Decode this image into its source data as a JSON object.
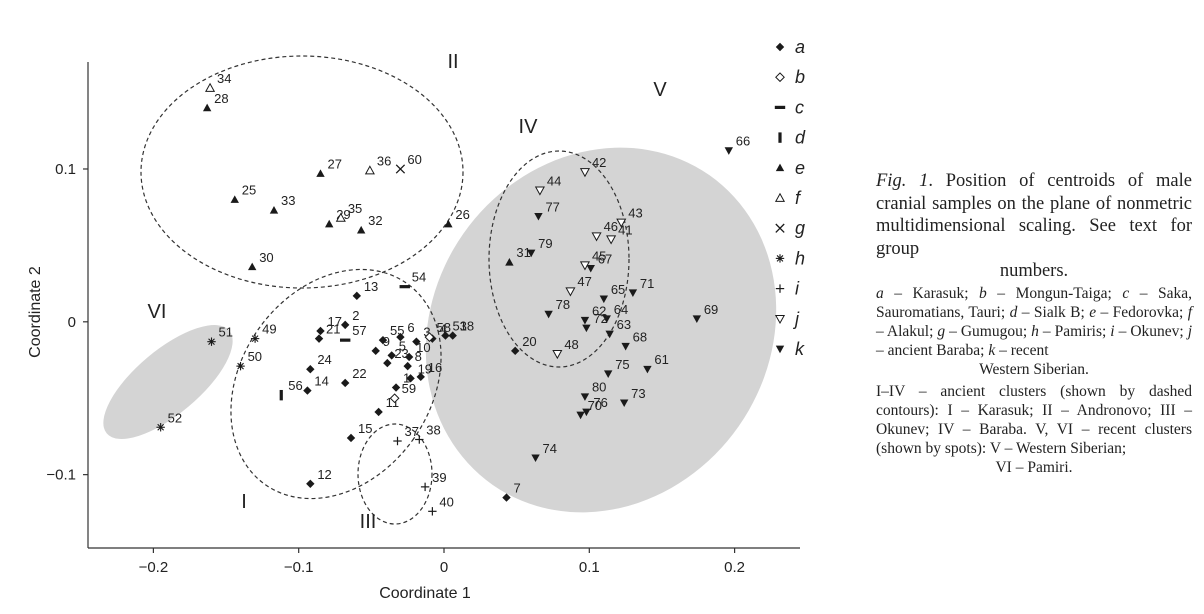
{
  "chart_data": {
    "type": "scatter",
    "xlabel": "Coordinate 1",
    "ylabel": "Coordinate 2",
    "xlim": [
      -0.245,
      0.245
    ],
    "ylim": [
      -0.148,
      0.17
    ],
    "x_ticks": [
      -0.2,
      -0.1,
      0,
      0.1,
      0.2
    ],
    "x_tick_labels": [
      "−0.2",
      "−0.1",
      "0",
      "0.1",
      "0.2"
    ],
    "y_ticks": [
      -0.1,
      0,
      0.1
    ],
    "y_tick_labels": [
      "−0.1",
      "0",
      "0.1"
    ],
    "grid": false,
    "legend_position": "right",
    "series": [
      {
        "name": "a",
        "marker": "diamond",
        "points": [
          {
            "label": "1",
            "x": -0.033,
            "y": -0.043
          },
          {
            "label": "2",
            "x": -0.068,
            "y": -0.002
          },
          {
            "label": "3",
            "x": -0.019,
            "y": -0.013
          },
          {
            "label": "4",
            "x": -0.008,
            "y": -0.011
          },
          {
            "label": "5",
            "x": -0.036,
            "y": -0.022
          },
          {
            "label": "6",
            "x": -0.03,
            "y": -0.01
          },
          {
            "label": "7",
            "x": 0.043,
            "y": -0.115
          },
          {
            "label": "8",
            "x": -0.025,
            "y": -0.029
          },
          {
            "label": "9",
            "x": -0.047,
            "y": -0.019
          },
          {
            "label": "10",
            "x": -0.024,
            "y": -0.023
          },
          {
            "label": "11",
            "x": -0.045,
            "y": -0.059
          },
          {
            "label": "12",
            "x": -0.092,
            "y": -0.106
          },
          {
            "label": "13",
            "x": -0.06,
            "y": 0.017
          },
          {
            "label": "14",
            "x": -0.094,
            "y": -0.045
          },
          {
            "label": "15",
            "x": -0.064,
            "y": -0.076
          },
          {
            "label": "16",
            "x": -0.016,
            "y": -0.036
          },
          {
            "label": "17",
            "x": -0.085,
            "y": -0.006
          },
          {
            "label": "18",
            "x": 0.006,
            "y": -0.009
          },
          {
            "label": "19",
            "x": -0.023,
            "y": -0.037
          },
          {
            "label": "20",
            "x": 0.049,
            "y": -0.019
          },
          {
            "label": "21",
            "x": -0.086,
            "y": -0.011
          },
          {
            "label": "22",
            "x": -0.068,
            "y": -0.04
          },
          {
            "label": "23",
            "x": -0.039,
            "y": -0.027
          },
          {
            "label": "24",
            "x": -0.092,
            "y": -0.031
          },
          {
            "label": "53",
            "x": 0.001,
            "y": -0.009
          },
          {
            "label": "55",
            "x": -0.042,
            "y": -0.012
          }
        ]
      },
      {
        "name": "b",
        "marker": "diamond-open",
        "points": [
          {
            "label": "58",
            "x": -0.01,
            "y": -0.01
          },
          {
            "label": "59",
            "x": -0.034,
            "y": -0.05
          }
        ]
      },
      {
        "name": "c",
        "marker": "hbar",
        "points": [
          {
            "label": "54",
            "x": -0.027,
            "y": 0.023
          },
          {
            "label": "57",
            "x": -0.068,
            "y": -0.012
          }
        ]
      },
      {
        "name": "d",
        "marker": "vbar",
        "points": [
          {
            "label": "56",
            "x": -0.112,
            "y": -0.048
          }
        ]
      },
      {
        "name": "e",
        "marker": "triangle",
        "points": [
          {
            "label": "25",
            "x": -0.144,
            "y": 0.08
          },
          {
            "label": "26",
            "x": 0.003,
            "y": 0.064
          },
          {
            "label": "27",
            "x": -0.085,
            "y": 0.097
          },
          {
            "label": "28",
            "x": -0.163,
            "y": 0.14
          },
          {
            "label": "29",
            "x": -0.079,
            "y": 0.064
          },
          {
            "label": "30",
            "x": -0.132,
            "y": 0.036
          },
          {
            "label": "31",
            "x": 0.045,
            "y": 0.039
          },
          {
            "label": "32",
            "x": -0.057,
            "y": 0.06
          },
          {
            "label": "33",
            "x": -0.117,
            "y": 0.073
          }
        ]
      },
      {
        "name": "f",
        "marker": "triangle-open",
        "points": [
          {
            "label": "34",
            "x": -0.161,
            "y": 0.153
          },
          {
            "label": "35",
            "x": -0.071,
            "y": 0.068
          },
          {
            "label": "36",
            "x": -0.051,
            "y": 0.099
          }
        ]
      },
      {
        "name": "g",
        "marker": "cross",
        "points": [
          {
            "label": "60",
            "x": -0.03,
            "y": 0.1
          }
        ]
      },
      {
        "name": "h",
        "marker": "asterisk",
        "points": [
          {
            "label": "49",
            "x": -0.13,
            "y": -0.011
          },
          {
            "label": "50",
            "x": -0.14,
            "y": -0.029
          },
          {
            "label": "51",
            "x": -0.16,
            "y": -0.013
          },
          {
            "label": "52",
            "x": -0.195,
            "y": -0.069
          }
        ]
      },
      {
        "name": "i",
        "marker": "plus",
        "points": [
          {
            "label": "37",
            "x": -0.032,
            "y": -0.078
          },
          {
            "label": "38",
            "x": -0.017,
            "y": -0.077
          },
          {
            "label": "39",
            "x": -0.013,
            "y": -0.108
          },
          {
            "label": "40",
            "x": -0.008,
            "y": -0.124
          }
        ]
      },
      {
        "name": "j",
        "marker": "triangle-down-open",
        "points": [
          {
            "label": "41",
            "x": 0.115,
            "y": 0.054
          },
          {
            "label": "42",
            "x": 0.097,
            "y": 0.098
          },
          {
            "label": "43",
            "x": 0.122,
            "y": 0.065
          },
          {
            "label": "44",
            "x": 0.066,
            "y": 0.086
          },
          {
            "label": "45",
            "x": 0.097,
            "y": 0.037
          },
          {
            "label": "46",
            "x": 0.105,
            "y": 0.056
          },
          {
            "label": "47",
            "x": 0.087,
            "y": 0.02
          },
          {
            "label": "48",
            "x": 0.078,
            "y": -0.021
          }
        ]
      },
      {
        "name": "k",
        "marker": "triangle-down",
        "points": [
          {
            "label": "61",
            "x": 0.14,
            "y": -0.031
          },
          {
            "label": "62",
            "x": 0.097,
            "y": 0.001
          },
          {
            "label": "63",
            "x": 0.114,
            "y": -0.008
          },
          {
            "label": "64",
            "x": 0.112,
            "y": 0.002
          },
          {
            "label": "65",
            "x": 0.11,
            "y": 0.015
          },
          {
            "label": "66",
            "x": 0.196,
            "y": 0.112
          },
          {
            "label": "67",
            "x": 0.101,
            "y": 0.035
          },
          {
            "label": "68",
            "x": 0.125,
            "y": -0.016
          },
          {
            "label": "69",
            "x": 0.174,
            "y": 0.002
          },
          {
            "label": "70",
            "x": 0.094,
            "y": -0.061
          },
          {
            "label": "71",
            "x": 0.13,
            "y": 0.019
          },
          {
            "label": "72",
            "x": 0.098,
            "y": -0.004
          },
          {
            "label": "73",
            "x": 0.124,
            "y": -0.053
          },
          {
            "label": "74",
            "x": 0.063,
            "y": -0.089
          },
          {
            "label": "75",
            "x": 0.113,
            "y": -0.034
          },
          {
            "label": "76",
            "x": 0.098,
            "y": -0.059
          },
          {
            "label": "77",
            "x": 0.065,
            "y": 0.069
          },
          {
            "label": "78",
            "x": 0.072,
            "y": 0.005
          },
          {
            "label": "79",
            "x": 0.06,
            "y": 0.045
          },
          {
            "label": "80",
            "x": 0.097,
            "y": -0.049
          }
        ]
      }
    ],
    "annotations": {
      "ancient_clusters": [
        {
          "label": "I",
          "shape": "dashed-contour"
        },
        {
          "label": "II",
          "shape": "dashed-contour"
        },
        {
          "label": "III",
          "shape": "dashed-contour"
        },
        {
          "label": "IV",
          "shape": "dashed-contour"
        }
      ],
      "recent_clusters": [
        {
          "label": "V",
          "shape": "gray-spot"
        },
        {
          "label": "VI",
          "shape": "gray-spot"
        }
      ]
    },
    "colors": {
      "points": "#1a1a1a",
      "spots": "#d4d4d4",
      "axes": "#333333"
    }
  },
  "caption": {
    "fig_label": "Fig. 1",
    "fig_text_main": ". Position of centroids of male cranial samples on the plane of nonmetric multidimensional scaling. See text for group",
    "fig_text_last": "numbers.",
    "legend_a": "a",
    "legend_a_text": " – Karasuk; ",
    "legend_b": "b",
    "legend_b_text": " – Mongun-Taiga; ",
    "legend_c": "c",
    "legend_c_text": " – Saka, Sauromatians, Tauri; ",
    "legend_d": "d",
    "legend_d_text": " – Sialk B; ",
    "legend_e": "e",
    "legend_e_text": " – Fedorovka; ",
    "legend_f": "f",
    "legend_f_text": " – Alakul; ",
    "legend_g": "g",
    "legend_g_text": " – Gumugou; ",
    "legend_h": "h",
    "legend_h_text": " – Pamiris; ",
    "legend_i": "i",
    "legend_i_text": " – Okunev; ",
    "legend_j": "j",
    "legend_j_text": " – ancient Baraba; ",
    "legend_k": "k",
    "legend_k_text": " – recent",
    "legend_last": "Western Siberian.",
    "clusters_text": "I–IV – ancient clusters (shown by dashed contours): I – Karasuk; II – Andronovo; III – Okunev; IV – Baraba. V, VI – recent clusters (shown by spots): V – Western Siberian;",
    "clusters_last": "VI – Pamiri."
  }
}
